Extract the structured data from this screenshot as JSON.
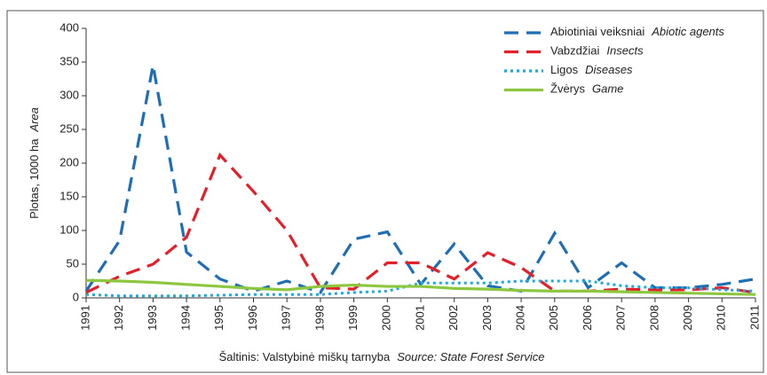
{
  "chart_data": {
    "type": "line",
    "y_label": "Plotas, 1000 ha",
    "y_label_en": "Area",
    "source": "Šaltinis: Valstybinė miškų tarnyba",
    "source_en": "Source: State Forest Service",
    "categories": [
      "1991",
      "1992",
      "1993",
      "1994",
      "1995",
      "1996",
      "1997",
      "1998",
      "1999",
      "2000",
      "2001",
      "2002",
      "2003",
      "2004",
      "2005",
      "2006",
      "2007",
      "2008",
      "2009",
      "2010",
      "2011"
    ],
    "ylim": [
      0,
      400
    ],
    "yticks": [
      0,
      50,
      100,
      150,
      200,
      250,
      300,
      350,
      400
    ],
    "series": [
      {
        "name": "Abiotiniai veiksniai",
        "name_en": "Abiotic agents",
        "color": "#1f6eb5",
        "style": "dashed",
        "values": [
          10,
          85,
          345,
          68,
          28,
          10,
          25,
          8,
          87,
          98,
          20,
          80,
          18,
          10,
          96,
          15,
          52,
          15,
          15,
          20,
          28
        ]
      },
      {
        "name": "Vabzdžiai",
        "name_en": "Insects",
        "color": "#e3202a",
        "style": "dashed",
        "values": [
          8,
          32,
          50,
          90,
          212,
          158,
          100,
          15,
          13,
          52,
          52,
          28,
          67,
          45,
          10,
          10,
          13,
          12,
          12,
          15,
          8
        ]
      },
      {
        "name": "Ligos",
        "name_en": "Diseases",
        "color": "#1fa8df",
        "style": "dotted",
        "values": [
          5,
          3,
          3,
          3,
          4,
          5,
          5,
          5,
          8,
          10,
          22,
          22,
          22,
          25,
          25,
          25,
          18,
          15,
          15,
          12,
          10
        ]
      },
      {
        "name": "Žvėrys",
        "name_en": "Game",
        "color": "#8dc63f",
        "style": "solid",
        "values": [
          26,
          25,
          23,
          20,
          17,
          14,
          12,
          17,
          19,
          17,
          17,
          14,
          13,
          11,
          10,
          10,
          9,
          8,
          7,
          6,
          5
        ]
      }
    ]
  }
}
